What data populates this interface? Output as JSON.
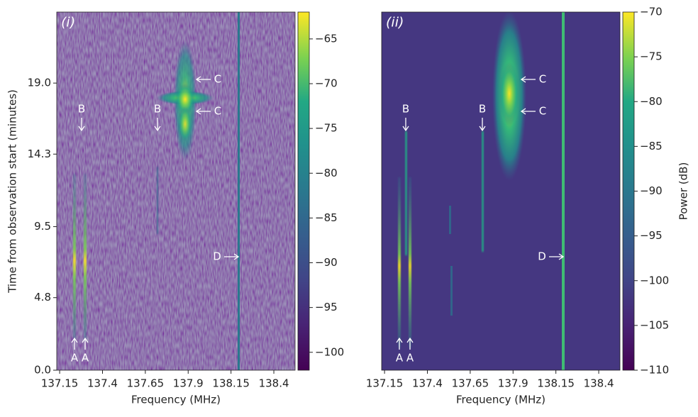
{
  "chart_data": [
    {
      "type": "heatmap",
      "panel_label": "(i)",
      "xlabel": "Frequency (MHz)",
      "ylabel": "Time from observation start (minutes)",
      "xlim": [
        137.133,
        138.524
      ],
      "xticks": [
        137.15,
        137.4,
        137.65,
        137.9,
        138.15,
        138.4
      ],
      "ylim": [
        23.7,
        0
      ],
      "yticks": [
        {
          "value": 0,
          "label": "0.0"
        },
        4.8,
        9.5,
        14.3,
        {
          "value": 19,
          "label": "19.0"
        }
      ],
      "colormap": "viridis",
      "clim": [
        -102,
        -62
      ],
      "cticks": [
        {
          "value": -65,
          "label": "−65"
        },
        {
          "value": -70,
          "label": "−70"
        },
        {
          "value": -75,
          "label": "−75"
        },
        {
          "value": -80,
          "label": "−80"
        },
        {
          "value": -85,
          "label": "−85"
        },
        {
          "value": -90,
          "label": "−90"
        },
        {
          "value": -95,
          "label": "−95"
        },
        {
          "value": -100,
          "label": "−100"
        }
      ],
      "annotations": [
        "B",
        "B",
        "C",
        "C",
        "D",
        "A",
        "A"
      ]
    },
    {
      "type": "heatmap",
      "panel_label": "(ii)",
      "xlabel": "Frequency (MHz)",
      "clabel": "Power (dB)",
      "xlim": [
        137.133,
        138.524
      ],
      "xticks": [
        137.15,
        137.4,
        137.65,
        137.9,
        138.15,
        138.4
      ],
      "ylim": [
        23.7,
        0
      ],
      "colormap": "viridis",
      "clim": [
        -110,
        -70
      ],
      "cticks": [
        {
          "value": -70,
          "label": "−70"
        },
        {
          "value": -75,
          "label": "−75"
        },
        {
          "value": -80,
          "label": "−80"
        },
        {
          "value": -85,
          "label": "−85"
        },
        {
          "value": -90,
          "label": "−90"
        },
        {
          "value": -95,
          "label": "−95"
        },
        {
          "value": -100,
          "label": "−100"
        },
        {
          "value": -105,
          "label": "−105"
        },
        {
          "value": -110,
          "label": "−110"
        }
      ],
      "annotations": [
        "B",
        "B",
        "C",
        "C",
        "D",
        "A",
        "A"
      ]
    }
  ]
}
